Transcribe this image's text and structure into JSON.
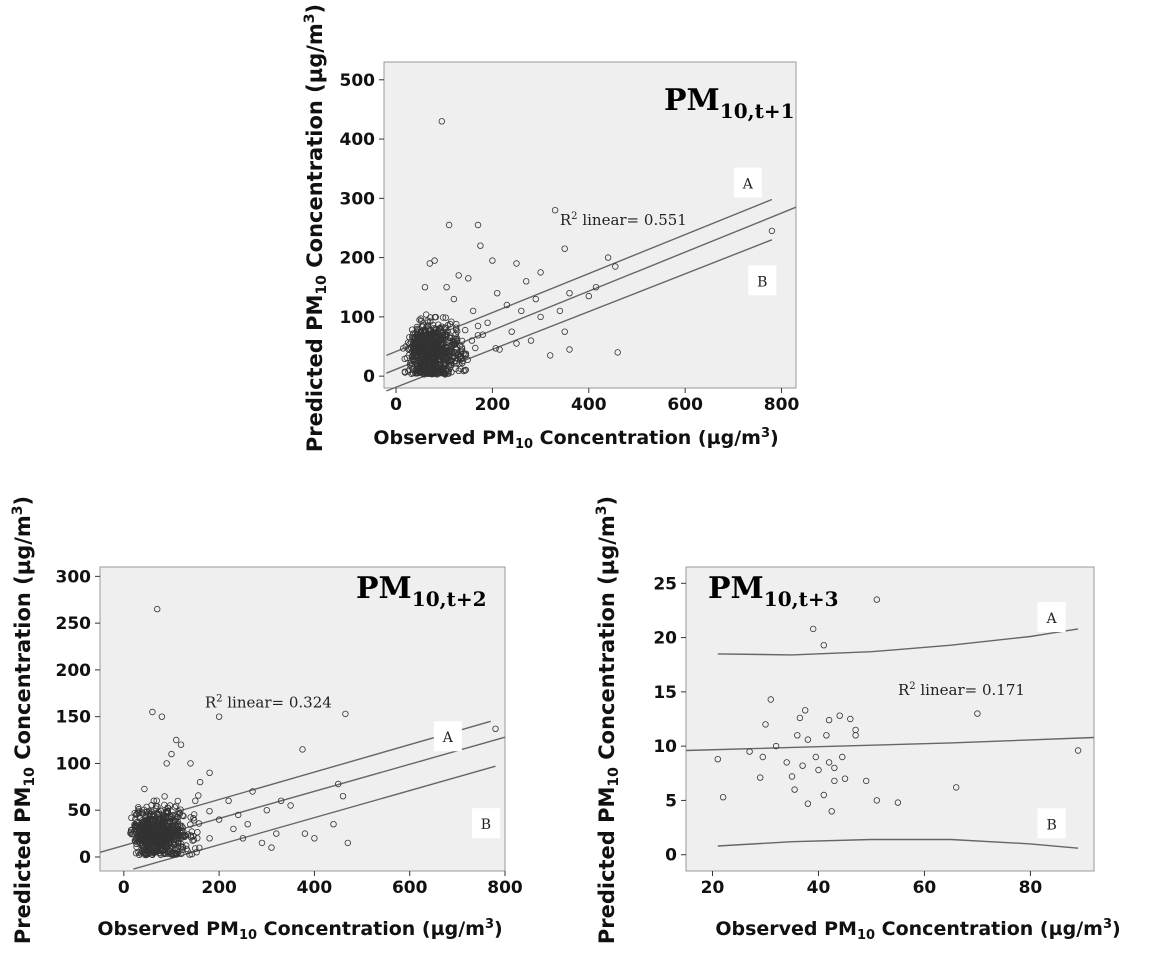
{
  "chart_data": [
    {
      "type": "scatter",
      "title": "PM",
      "title_sub": "10,t+1",
      "xlabel": {
        "pre": "Observed PM",
        "sub": "10",
        "post": " Concentration (µg/m",
        "sup": "3",
        "end": ")"
      },
      "ylabel": {
        "pre": "Predicted PM",
        "sub": "10",
        "post": " Concentration (µg/m",
        "sup": "3",
        "end": ")"
      },
      "xlim": [
        -25,
        830
      ],
      "ylim": [
        -20,
        530
      ],
      "xticks": [
        0,
        200,
        400,
        600,
        800
      ],
      "yticks": [
        0,
        100,
        200,
        300,
        400,
        500
      ],
      "r2_label": {
        "pre": "R",
        "sup": "2",
        "post": " linear= 0.551",
        "x": 340,
        "y": 255
      },
      "region_labels": [
        {
          "text": "A",
          "x": 730,
          "y": 325
        },
        {
          "text": "B",
          "x": 760,
          "y": 160
        }
      ],
      "fit_lines": [
        {
          "x": [
            -20,
            780
          ],
          "y": [
            -25,
            230
          ]
        },
        {
          "x": [
            -20,
            830
          ],
          "y": [
            5,
            285
          ]
        },
        {
          "x": [
            -20,
            780
          ],
          "y": [
            35,
            298
          ]
        }
      ],
      "cluster": {
        "count": 750,
        "x_center": 62,
        "x_sd": 30,
        "y_center": 40,
        "y_sd": 25,
        "x_min": 12,
        "y_min": 3
      },
      "scatter_extra": [
        [
          95,
          430
        ],
        [
          110,
          255
        ],
        [
          170,
          255
        ],
        [
          330,
          280
        ],
        [
          780,
          245
        ],
        [
          460,
          40
        ],
        [
          360,
          45
        ],
        [
          440,
          200
        ],
        [
          415,
          150
        ],
        [
          400,
          135
        ],
        [
          300,
          175
        ],
        [
          270,
          160
        ],
        [
          250,
          190
        ],
        [
          230,
          120
        ],
        [
          350,
          215
        ],
        [
          455,
          185
        ],
        [
          200,
          195
        ],
        [
          175,
          220
        ],
        [
          150,
          165
        ],
        [
          130,
          170
        ],
        [
          300,
          100
        ],
        [
          280,
          60
        ],
        [
          320,
          35
        ],
        [
          250,
          55
        ],
        [
          215,
          45
        ],
        [
          190,
          90
        ],
        [
          360,
          140
        ],
        [
          340,
          110
        ],
        [
          210,
          140
        ],
        [
          260,
          110
        ],
        [
          80,
          195
        ],
        [
          70,
          190
        ],
        [
          60,
          150
        ],
        [
          120,
          130
        ],
        [
          105,
          150
        ],
        [
          350,
          75
        ],
        [
          290,
          130
        ],
        [
          240,
          75
        ],
        [
          160,
          110
        ],
        [
          180,
          70
        ]
      ]
    },
    {
      "type": "scatter",
      "title": "PM",
      "title_sub": "10,t+2",
      "xlabel": {
        "pre": "Observed PM",
        "sub": "10",
        "post": " Concentration (µg/m",
        "sup": "3",
        "end": ")"
      },
      "ylabel": {
        "pre": "Predicted PM",
        "sub": "10",
        "post": " Concentration (µg/m",
        "sup": "3",
        "end": ")"
      },
      "xlim": [
        -50,
        800
      ],
      "ylim": [
        -15,
        310
      ],
      "xticks": [
        0,
        200,
        400,
        600,
        800
      ],
      "yticks": [
        0,
        50,
        100,
        150,
        200,
        250,
        300
      ],
      "r2_label": {
        "pre": "R",
        "sup": "2",
        "post": " linear= 0.324",
        "x": 170,
        "y": 160
      },
      "region_labels": [
        {
          "text": "A",
          "x": 680,
          "y": 128
        },
        {
          "text": "B",
          "x": 760,
          "y": 35
        }
      ],
      "fit_lines": [
        {
          "x": [
            20,
            780
          ],
          "y": [
            -13,
            97
          ]
        },
        {
          "x": [
            -50,
            800
          ],
          "y": [
            5,
            128
          ]
        },
        {
          "x": [
            20,
            770
          ],
          "y": [
            35,
            145
          ]
        }
      ],
      "cluster": {
        "count": 750,
        "x_center": 60,
        "x_sd": 30,
        "y_center": 25,
        "y_sd": 14,
        "x_min": 10,
        "y_min": 2
      },
      "scatter_extra": [
        [
          70,
          265
        ],
        [
          200,
          150
        ],
        [
          465,
          153
        ],
        [
          375,
          115
        ],
        [
          780,
          137
        ],
        [
          450,
          78
        ],
        [
          460,
          65
        ],
        [
          440,
          35
        ],
        [
          470,
          15
        ],
        [
          380,
          25
        ],
        [
          400,
          20
        ],
        [
          310,
          10
        ],
        [
          290,
          15
        ],
        [
          240,
          45
        ],
        [
          260,
          35
        ],
        [
          330,
          60
        ],
        [
          350,
          55
        ],
        [
          180,
          90
        ],
        [
          160,
          80
        ],
        [
          120,
          120
        ],
        [
          100,
          110
        ],
        [
          90,
          100
        ],
        [
          80,
          150
        ],
        [
          60,
          155
        ],
        [
          110,
          125
        ],
        [
          140,
          100
        ],
        [
          220,
          60
        ],
        [
          200,
          40
        ],
        [
          270,
          70
        ],
        [
          300,
          50
        ],
        [
          230,
          30
        ],
        [
          250,
          20
        ],
        [
          320,
          25
        ],
        [
          180,
          20
        ],
        [
          150,
          60
        ]
      ]
    },
    {
      "type": "scatter",
      "title": "PM",
      "title_sub": "10,t+3",
      "xlabel": {
        "pre": "Observed PM",
        "sub": "10",
        "post": " Concentration (µg/m",
        "sup": "3",
        "end": ")"
      },
      "ylabel": {
        "pre": "Predicted PM",
        "sub": "10",
        "post": " Concentration (µg/m",
        "sup": "3",
        "end": ")"
      },
      "xlim": [
        15,
        92
      ],
      "ylim": [
        -1.5,
        26.5
      ],
      "xticks": [
        20,
        40,
        60,
        80
      ],
      "yticks": [
        0,
        5,
        10,
        15,
        20,
        25
      ],
      "r2_label": {
        "pre": "R",
        "sup": "2",
        "post": " linear= 0.171",
        "x": 55,
        "y": 14.7
      },
      "region_labels": [
        {
          "text": "A",
          "x": 84,
          "y": 21.8
        },
        {
          "text": "B",
          "x": 84,
          "y": 2.8
        }
      ],
      "fit_lines": [
        {
          "x": [
            21,
            35,
            50,
            65,
            80,
            89
          ],
          "y": [
            18.5,
            18.4,
            18.7,
            19.3,
            20.1,
            20.8
          ]
        },
        {
          "x": [
            15,
            40,
            65,
            92
          ],
          "y": [
            9.6,
            9.95,
            10.3,
            10.8
          ]
        },
        {
          "x": [
            21,
            35,
            50,
            65,
            80,
            89
          ],
          "y": [
            0.8,
            1.2,
            1.4,
            1.4,
            1.0,
            0.6
          ]
        }
      ],
      "points": [
        [
          21,
          8.8
        ],
        [
          22,
          5.3
        ],
        [
          27,
          9.5
        ],
        [
          29,
          7.1
        ],
        [
          29.5,
          9.0
        ],
        [
          30,
          12.0
        ],
        [
          31,
          14.3
        ],
        [
          32,
          10.0
        ],
        [
          34,
          8.5
        ],
        [
          35,
          7.2
        ],
        [
          35.5,
          6.0
        ],
        [
          36,
          11.0
        ],
        [
          36.5,
          12.6
        ],
        [
          37,
          8.2
        ],
        [
          37.5,
          13.3
        ],
        [
          38,
          4.7
        ],
        [
          38,
          10.6
        ],
        [
          39,
          20.8
        ],
        [
          39.5,
          9.0
        ],
        [
          40,
          7.8
        ],
        [
          41,
          5.5
        ],
        [
          41,
          19.3
        ],
        [
          41.5,
          11.0
        ],
        [
          42,
          8.5
        ],
        [
          42,
          12.4
        ],
        [
          42.5,
          4.0
        ],
        [
          43,
          6.8
        ],
        [
          43,
          8.0
        ],
        [
          44,
          12.8
        ],
        [
          44.5,
          9.0
        ],
        [
          45,
          7.0
        ],
        [
          46,
          12.5
        ],
        [
          47,
          11.0
        ],
        [
          47,
          11.5
        ],
        [
          49,
          6.8
        ],
        [
          51,
          23.5
        ],
        [
          51,
          5.0
        ],
        [
          55,
          4.8
        ],
        [
          66,
          6.2
        ],
        [
          70,
          13.0
        ],
        [
          89,
          9.6
        ]
      ]
    }
  ]
}
